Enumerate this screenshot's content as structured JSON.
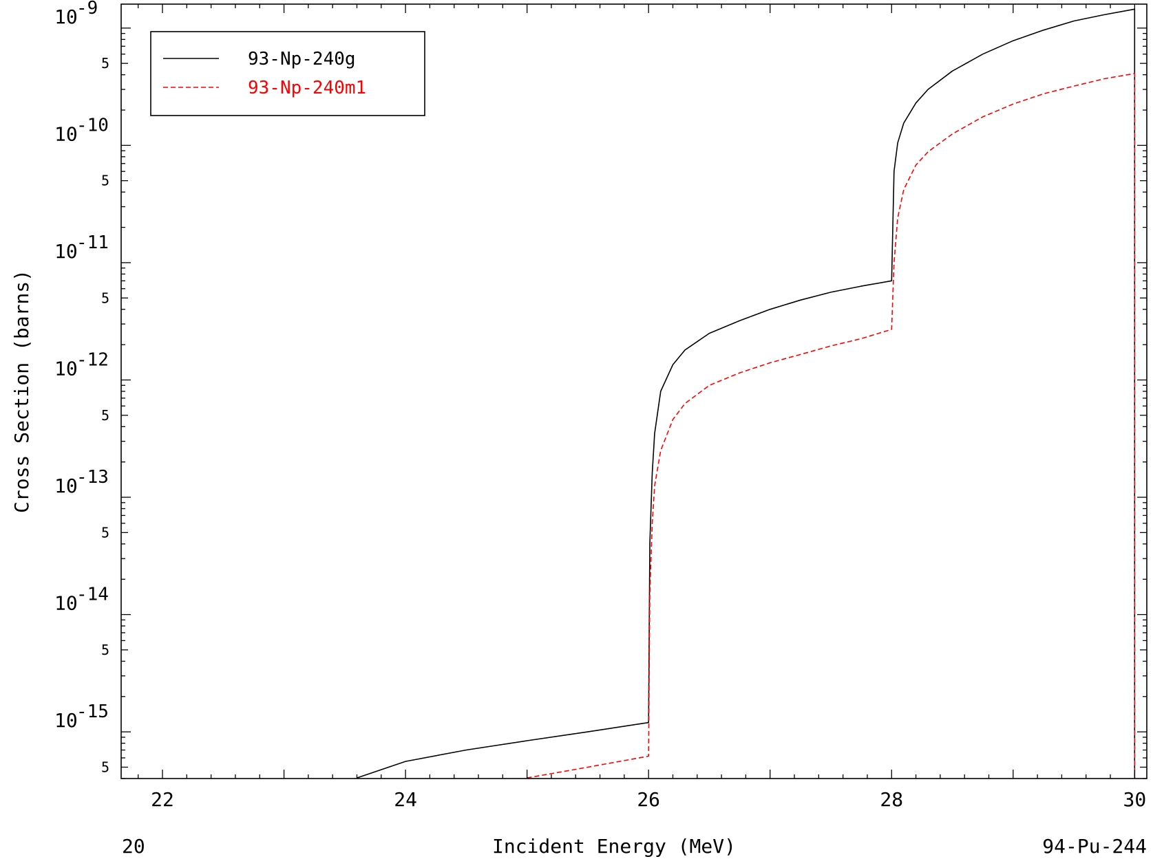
{
  "chart_data": {
    "type": "line",
    "xlabel": "Incident Energy (MeV)",
    "ylabel": "Cross Section (barns)",
    "xscale": "linear",
    "yscale": "log",
    "xlim": [
      21.66,
      30.1
    ],
    "ylim": [
      4e-16,
      1.6e-09
    ],
    "grid": false,
    "legend_position": "top-left",
    "x_ticks": [
      {
        "value": 22,
        "label": "22"
      },
      {
        "value": 24,
        "label": "24"
      },
      {
        "value": 26,
        "label": "26"
      },
      {
        "value": 28,
        "label": "28"
      },
      {
        "value": 30,
        "label": "30"
      }
    ],
    "y_decade_ticks": [
      {
        "value": 1e-15,
        "base": "10",
        "exp": "-15"
      },
      {
        "value": 1e-14,
        "base": "10",
        "exp": "-14"
      },
      {
        "value": 1e-13,
        "base": "10",
        "exp": "-13"
      },
      {
        "value": 1e-12,
        "base": "10",
        "exp": "-12"
      },
      {
        "value": 1e-11,
        "base": "10",
        "exp": "-11"
      },
      {
        "value": 1e-10,
        "base": "10",
        "exp": "-10"
      },
      {
        "value": 1e-09,
        "base": "10",
        "exp": "-9"
      }
    ],
    "y_minor_labels": [
      {
        "value": 5e-16,
        "label": "5"
      },
      {
        "value": 5e-15,
        "label": "5"
      },
      {
        "value": 5e-14,
        "label": "5"
      },
      {
        "value": 5e-13,
        "label": "5"
      },
      {
        "value": 5e-12,
        "label": "5"
      },
      {
        "value": 5e-11,
        "label": "5"
      },
      {
        "value": 5e-10,
        "label": "5"
      }
    ],
    "series": [
      {
        "name": "93-Np-240g",
        "color": "#000000",
        "dash": "solid",
        "x": [
          23.6,
          24.0,
          24.5,
          25.0,
          25.5,
          26.0,
          26.0,
          26.01,
          26.03,
          26.05,
          26.1,
          26.2,
          26.3,
          26.5,
          26.75,
          27.0,
          27.25,
          27.5,
          27.75,
          28.0,
          28.0,
          28.02,
          28.05,
          28.1,
          28.2,
          28.3,
          28.5,
          28.75,
          29.0,
          29.25,
          29.5,
          29.75,
          30.0,
          30.0
        ],
        "y": [
          4.05e-16,
          5.6e-16,
          7e-16,
          8.4e-16,
          1e-15,
          1.2e-15,
          1.2e-15,
          4e-14,
          1.6e-13,
          3.5e-13,
          8e-13,
          1.35e-12,
          1.8e-12,
          2.5e-12,
          3.2e-12,
          4e-12,
          4.8e-12,
          5.6e-12,
          6.3e-12,
          7e-12,
          7e-12,
          6e-11,
          1.05e-10,
          1.55e-10,
          2.3e-10,
          3e-10,
          4.3e-10,
          6e-10,
          7.8e-10,
          9.6e-10,
          1.15e-09,
          1.3e-09,
          1.45e-09,
          4e-16
        ]
      },
      {
        "name": "93-Np-240m1",
        "color": "#ff0000",
        "dash": "dashed",
        "x": [
          25.0,
          25.5,
          26.0,
          26.0,
          26.01,
          26.03,
          26.05,
          26.1,
          26.2,
          26.3,
          26.5,
          26.75,
          27.0,
          27.25,
          27.5,
          27.75,
          28.0,
          28.0,
          28.02,
          28.05,
          28.1,
          28.2,
          28.3,
          28.5,
          28.75,
          29.0,
          29.25,
          29.5,
          29.75,
          30.0,
          30.0
        ],
        "y": [
          4.05e-16,
          5e-16,
          6.2e-16,
          6.2e-16,
          1.5e-14,
          6e-14,
          1.25e-13,
          2.5e-13,
          4.6e-13,
          6.3e-13,
          9e-13,
          1.15e-12,
          1.4e-12,
          1.65e-12,
          1.95e-12,
          2.25e-12,
          2.7e-12,
          2.7e-12,
          1e-11,
          2.4e-11,
          4.2e-11,
          6.8e-11,
          8.8e-11,
          1.25e-10,
          1.75e-10,
          2.25e-10,
          2.75e-10,
          3.2e-10,
          3.7e-10,
          4.1e-10,
          4e-16
        ]
      }
    ],
    "footer": {
      "left": "20",
      "right": "94-Pu-244"
    }
  }
}
